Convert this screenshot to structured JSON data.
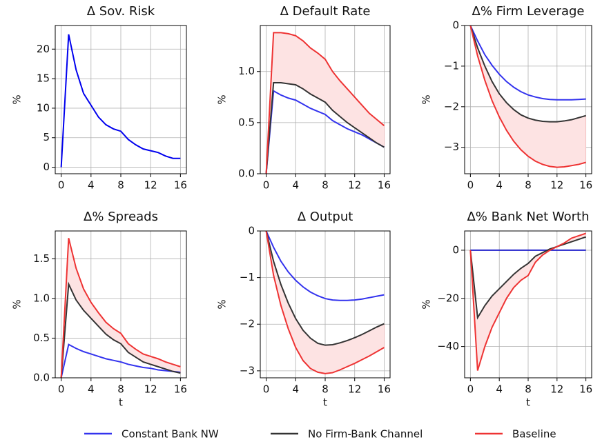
{
  "chart_data": [
    {
      "type": "line",
      "title": "Δ Sov. Risk",
      "ylabel": "%",
      "x": [
        0,
        1,
        2,
        3,
        4,
        5,
        6,
        7,
        8,
        9,
        10,
        11,
        12,
        13,
        14,
        15,
        16
      ],
      "xlim": [
        -0.8,
        16.8
      ],
      "xticks": [
        0,
        4,
        8,
        12,
        16
      ],
      "ylim": [
        -1.1,
        24
      ],
      "yticks": [
        0,
        5,
        10,
        15,
        20
      ],
      "grid": true,
      "series": [
        {
          "color": "#0000ee",
          "values": [
            0,
            22.5,
            16.5,
            12.5,
            10.5,
            8.5,
            7.2,
            6.5,
            6.1,
            4.7,
            3.8,
            3.1,
            2.8,
            2.5,
            1.9,
            1.5,
            1.5
          ]
        }
      ]
    },
    {
      "type": "line",
      "title": "Δ Default Rate",
      "ylabel": "%",
      "x": [
        0,
        1,
        2,
        3,
        4,
        5,
        6,
        7,
        8,
        9,
        10,
        11,
        12,
        13,
        14,
        15,
        16
      ],
      "xlim": [
        -0.8,
        16.8
      ],
      "xticks": [
        0,
        4,
        8,
        12,
        16
      ],
      "ylim": [
        0,
        1.45
      ],
      "yticks": [
        {
          "value": 0,
          "label": "0.0"
        },
        {
          "value": 0.5,
          "label": "0.5"
        },
        {
          "value": 1,
          "label": "1.0"
        }
      ],
      "grid": true,
      "fill_between": [
        1,
        2
      ],
      "fill_color": "#fde3e3",
      "series": [
        {
          "name": "Constant Bank NW",
          "color": "#3333ee",
          "values": [
            0,
            0.81,
            0.77,
            0.74,
            0.72,
            0.68,
            0.64,
            0.61,
            0.58,
            0.52,
            0.48,
            0.44,
            0.41,
            0.38,
            0.34,
            0.3,
            0.26
          ]
        },
        {
          "name": "No Firm-Bank Channel",
          "color": "#333333",
          "values": [
            0,
            0.89,
            0.89,
            0.88,
            0.87,
            0.83,
            0.78,
            0.74,
            0.7,
            0.62,
            0.56,
            0.5,
            0.45,
            0.4,
            0.35,
            0.3,
            0.26
          ]
        },
        {
          "name": "Baseline",
          "color": "#ee3333",
          "values": [
            0,
            1.38,
            1.38,
            1.37,
            1.35,
            1.3,
            1.23,
            1.18,
            1.12,
            1,
            0.91,
            0.83,
            0.75,
            0.67,
            0.59,
            0.53,
            0.47
          ]
        }
      ]
    },
    {
      "type": "line",
      "title": "Δ% Firm Leverage",
      "ylabel": "%",
      "x": [
        0,
        1,
        2,
        3,
        4,
        5,
        6,
        7,
        8,
        9,
        10,
        11,
        12,
        13,
        14,
        15,
        16
      ],
      "xlim": [
        -0.8,
        16.8
      ],
      "xticks": [
        0,
        4,
        8,
        12,
        16
      ],
      "ylim": [
        -3.65,
        0
      ],
      "yticks": [
        {
          "value": -3,
          "label": "−3"
        },
        {
          "value": -2,
          "label": "−2"
        },
        {
          "value": -1,
          "label": "−1"
        },
        0
      ],
      "grid": true,
      "fill_between": [
        1,
        2
      ],
      "fill_color": "#fde3e3",
      "series": [
        {
          "color": "#3333ee",
          "values": [
            0,
            -0.38,
            -0.72,
            -0.98,
            -1.2,
            -1.38,
            -1.52,
            -1.63,
            -1.71,
            -1.76,
            -1.8,
            -1.82,
            -1.83,
            -1.83,
            -1.83,
            -1.82,
            -1.81
          ]
        },
        {
          "color": "#333333",
          "values": [
            0,
            -0.55,
            -1,
            -1.38,
            -1.68,
            -1.9,
            -2.07,
            -2.2,
            -2.28,
            -2.33,
            -2.36,
            -2.37,
            -2.37,
            -2.35,
            -2.32,
            -2.27,
            -2.22
          ]
        },
        {
          "color": "#ee3333",
          "values": [
            0,
            -0.75,
            -1.35,
            -1.85,
            -2.25,
            -2.58,
            -2.85,
            -3.06,
            -3.22,
            -3.34,
            -3.42,
            -3.47,
            -3.49,
            -3.48,
            -3.45,
            -3.42,
            -3.37
          ]
        }
      ]
    },
    {
      "type": "line",
      "title": "Δ% Spreads",
      "ylabel": "%",
      "xlabel": "t",
      "x": [
        0,
        1,
        2,
        3,
        4,
        5,
        6,
        7,
        8,
        9,
        10,
        11,
        12,
        13,
        14,
        15,
        16
      ],
      "xlim": [
        -0.8,
        16.8
      ],
      "xticks": [
        0,
        4,
        8,
        12,
        16
      ],
      "ylim": [
        0,
        1.85
      ],
      "yticks": [
        {
          "value": 0,
          "label": "0.0"
        },
        {
          "value": 0.5,
          "label": "0.5"
        },
        {
          "value": 1,
          "label": "1.0"
        },
        {
          "value": 1.5,
          "label": "1.5"
        }
      ],
      "grid": true,
      "fill_between": [
        1,
        2
      ],
      "fill_color": "#fde3e3",
      "series": [
        {
          "color": "#3333ee",
          "values": [
            0,
            0.42,
            0.37,
            0.33,
            0.3,
            0.27,
            0.24,
            0.22,
            0.2,
            0.17,
            0.15,
            0.13,
            0.12,
            0.1,
            0.09,
            0.08,
            0.07
          ]
        },
        {
          "color": "#333333",
          "values": [
            0,
            1.18,
            0.98,
            0.85,
            0.75,
            0.65,
            0.55,
            0.48,
            0.43,
            0.32,
            0.26,
            0.2,
            0.17,
            0.14,
            0.11,
            0.08,
            0.06
          ]
        },
        {
          "color": "#ee3333",
          "values": [
            0,
            1.76,
            1.38,
            1.12,
            0.95,
            0.82,
            0.7,
            0.62,
            0.56,
            0.43,
            0.36,
            0.3,
            0.27,
            0.24,
            0.2,
            0.17,
            0.14
          ]
        }
      ]
    },
    {
      "type": "line",
      "title": "Δ Output",
      "ylabel": "%",
      "xlabel": "t",
      "x": [
        0,
        1,
        2,
        3,
        4,
        5,
        6,
        7,
        8,
        9,
        10,
        11,
        12,
        13,
        14,
        15,
        16
      ],
      "xlim": [
        -0.8,
        16.8
      ],
      "xticks": [
        0,
        4,
        8,
        12,
        16
      ],
      "ylim": [
        -3.15,
        0
      ],
      "yticks": [
        {
          "value": -3,
          "label": "−3"
        },
        {
          "value": -2,
          "label": "−2"
        },
        {
          "value": -1,
          "label": "−1"
        },
        0
      ],
      "grid": true,
      "fill_between": [
        1,
        2
      ],
      "fill_color": "#fde3e3",
      "series": [
        {
          "color": "#3333ee",
          "values": [
            0,
            -0.35,
            -0.65,
            -0.88,
            -1.06,
            -1.2,
            -1.31,
            -1.39,
            -1.45,
            -1.48,
            -1.49,
            -1.49,
            -1.48,
            -1.46,
            -1.43,
            -1.4,
            -1.37
          ]
        },
        {
          "color": "#333333",
          "values": [
            0,
            -0.65,
            -1.15,
            -1.55,
            -1.88,
            -2.13,
            -2.3,
            -2.41,
            -2.45,
            -2.44,
            -2.4,
            -2.35,
            -2.29,
            -2.22,
            -2.14,
            -2.06,
            -1.99
          ]
        },
        {
          "color": "#ee3333",
          "values": [
            0,
            -0.95,
            -1.6,
            -2.1,
            -2.5,
            -2.78,
            -2.95,
            -3.03,
            -3.06,
            -3.04,
            -2.98,
            -2.91,
            -2.84,
            -2.76,
            -2.68,
            -2.59,
            -2.5
          ]
        }
      ]
    },
    {
      "type": "line",
      "title": "Δ% Bank Net Worth",
      "ylabel": "%",
      "xlabel": "t",
      "x": [
        0,
        1,
        2,
        3,
        4,
        5,
        6,
        7,
        8,
        9,
        10,
        11,
        12,
        13,
        14,
        15,
        16
      ],
      "xlim": [
        -0.8,
        16.8
      ],
      "xticks": [
        0,
        4,
        8,
        12,
        16
      ],
      "ylim": [
        -53,
        8
      ],
      "yticks": [
        {
          "value": -40,
          "label": "−40"
        },
        {
          "value": -20,
          "label": "−20"
        },
        0
      ],
      "grid": true,
      "fill_between": [
        1,
        2
      ],
      "fill_color": "#fde3e3",
      "series": [
        {
          "color": "#2222cc",
          "values": [
            0,
            0,
            0,
            0,
            0,
            0,
            0,
            0,
            0,
            0,
            0,
            0,
            0,
            0,
            0,
            0,
            0
          ]
        },
        {
          "color": "#333333",
          "values": [
            0,
            -28,
            -23,
            -19,
            -16,
            -13,
            -10,
            -7.5,
            -5.5,
            -2.5,
            -1,
            0.5,
            1.5,
            2.5,
            3.5,
            4.5,
            5.5
          ]
        },
        {
          "color": "#ee3333",
          "values": [
            0,
            -50,
            -40,
            -32,
            -26,
            -20,
            -15.5,
            -12.5,
            -10.5,
            -5,
            -2,
            0,
            1.5,
            3,
            5,
            6,
            7
          ]
        }
      ]
    }
  ]
}
